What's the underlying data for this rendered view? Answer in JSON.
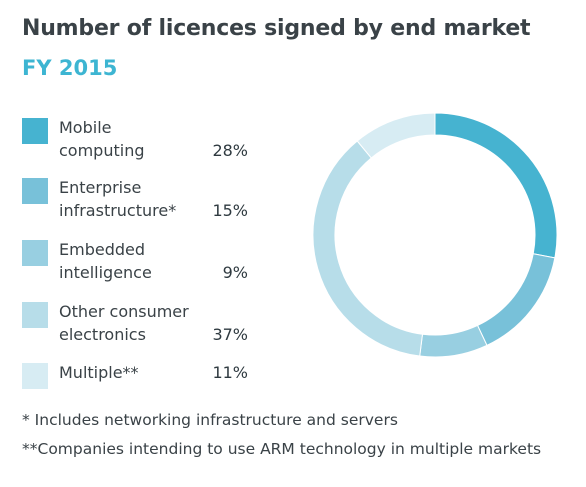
{
  "chart_data": {
    "type": "pie",
    "title": "Number of licences signed by end market",
    "subtitle": "FY 2015",
    "series": [
      {
        "name": "Mobile computing",
        "label": "Mobile\ncomputing",
        "value_label": "28%",
        "value": 28,
        "color": "#46b3d0"
      },
      {
        "name": "Enterprise infrastructure*",
        "label": "Enterprise\ninfrastructure*",
        "value_label": "15%",
        "value": 15,
        "color": "#78c1d9"
      },
      {
        "name": "Embedded intelligence",
        "label": "Embedded\nintelligence",
        "value_label": "9%",
        "value": 9,
        "color": "#98cfe1"
      },
      {
        "name": "Other consumer electronics",
        "label": "Other consumer\nelectronics",
        "value_label": "37%",
        "value": 37,
        "color": "#b7dde9"
      },
      {
        "name": "Multiple**",
        "label": "Multiple**",
        "value_label": "11%",
        "value": 11,
        "color": "#d7ecf3"
      }
    ],
    "style": "donut"
  },
  "footnotes": [
    "*  Includes networking infrastructure and servers",
    "**Companies intending to use ARM technology in multiple markets"
  ]
}
